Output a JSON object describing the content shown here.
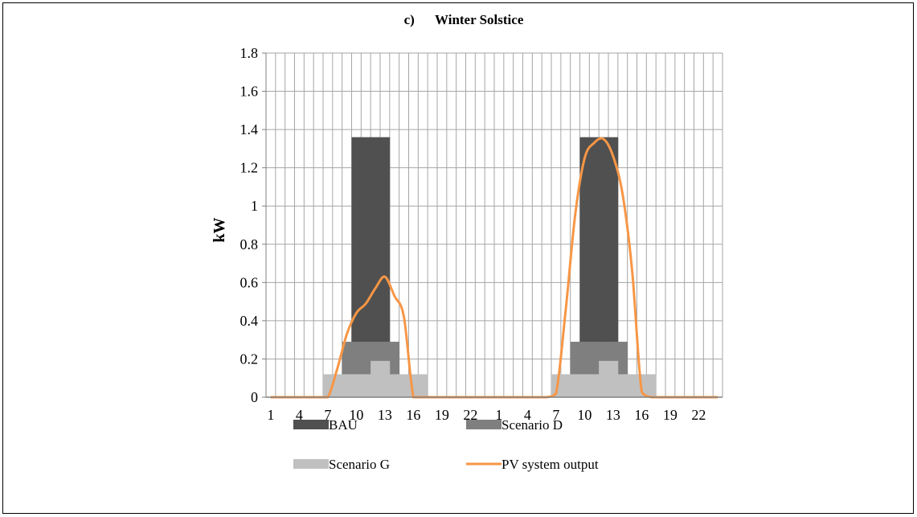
{
  "chart_data": {
    "type": "bar",
    "title": "c)      Winter Solstice",
    "xlabel": "",
    "ylabel": "kW",
    "ylim": [
      0,
      1.8
    ],
    "yticks": [
      "0",
      "0.2",
      "0.4",
      "0.6",
      "0.8",
      "1",
      "1.2",
      "1.4",
      "1.6",
      "1.8"
    ],
    "categories": [
      "1",
      "2",
      "3",
      "4",
      "5",
      "6",
      "7",
      "8",
      "9",
      "10",
      "11",
      "12",
      "13",
      "14",
      "15",
      "16",
      "17",
      "18",
      "19",
      "20",
      "21",
      "22",
      "23",
      "24",
      "1",
      "2",
      "3",
      "4",
      "5",
      "6",
      "7",
      "8",
      "9",
      "10",
      "11",
      "12",
      "13",
      "14",
      "15",
      "16",
      "17",
      "18",
      "19",
      "20",
      "21",
      "22",
      "23",
      "24"
    ],
    "xtick_labels_shown": [
      "1",
      "4",
      "7",
      "10",
      "13",
      "16",
      "19",
      "22",
      "1",
      "4",
      "7",
      "10",
      "13",
      "16",
      "19",
      "22"
    ],
    "grid": true,
    "legend_position": "bottom",
    "series": [
      {
        "name": "BAU",
        "kind": "bar",
        "color": "#505050",
        "values": [
          0,
          0,
          0,
          0,
          0,
          0,
          0,
          0,
          0,
          1.36,
          1.36,
          1.36,
          1.36,
          0,
          0,
          0,
          0,
          0,
          0,
          0,
          0,
          0,
          0,
          0,
          0,
          0,
          0,
          0,
          0,
          0,
          0,
          0,
          0,
          1.36,
          1.36,
          1.36,
          1.36,
          0,
          0,
          0,
          0,
          0,
          0,
          0,
          0,
          0,
          0,
          0
        ]
      },
      {
        "name": "Scenario D",
        "kind": "bar",
        "color": "#7f7f7f",
        "values": [
          0,
          0,
          0,
          0,
          0,
          0,
          0,
          0,
          0.29,
          0.29,
          0.29,
          0.29,
          0.29,
          0.29,
          0,
          0,
          0,
          0,
          0,
          0,
          0,
          0,
          0,
          0,
          0,
          0,
          0,
          0,
          0,
          0,
          0,
          0,
          0.29,
          0.29,
          0.29,
          0.29,
          0.29,
          0.29,
          0,
          0,
          0,
          0,
          0,
          0,
          0,
          0,
          0,
          0
        ]
      },
      {
        "name": "Scenario G",
        "kind": "bar",
        "color": "#c0c0c0",
        "values": [
          0,
          0,
          0,
          0,
          0,
          0,
          0.12,
          0.12,
          0.12,
          0.12,
          0.12,
          0.19,
          0.19,
          0.12,
          0.12,
          0.12,
          0.12,
          0,
          0,
          0,
          0,
          0,
          0,
          0,
          0,
          0,
          0,
          0,
          0,
          0,
          0.12,
          0.12,
          0.12,
          0.12,
          0.12,
          0.19,
          0.19,
          0.12,
          0.12,
          0.12,
          0.12,
          0,
          0,
          0,
          0,
          0,
          0,
          0
        ]
      },
      {
        "name": "PV system output",
        "kind": "line",
        "color": "#f79646",
        "values": [
          0,
          0,
          0,
          0,
          0,
          0,
          0,
          0.15,
          0.33,
          0.44,
          0.49,
          0.57,
          0.63,
          0.53,
          0.42,
          0,
          0,
          0,
          0,
          0,
          0,
          0,
          0,
          0,
          0,
          0,
          0,
          0,
          0,
          0,
          0.02,
          0.45,
          0.95,
          1.25,
          1.33,
          1.35,
          1.26,
          1.06,
          0.66,
          0.03,
          0,
          0,
          0,
          0,
          0,
          0,
          0,
          0
        ]
      }
    ]
  }
}
